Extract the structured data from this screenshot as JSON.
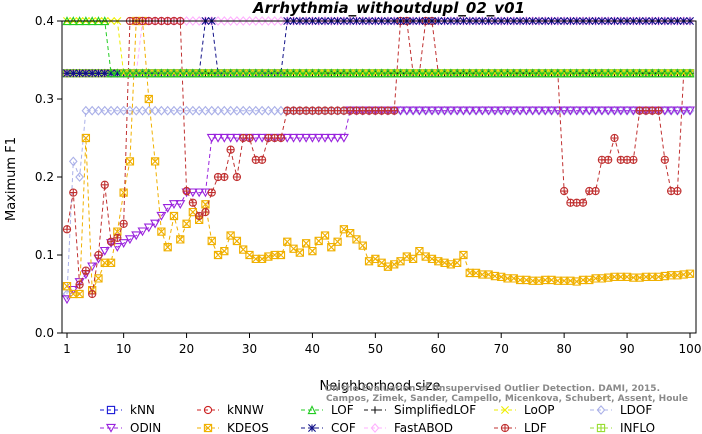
{
  "chart_data": {
    "type": "line",
    "title": "Arrhythmia_withoutdupl_02_v01",
    "xlabel": "Neighborhood size",
    "ylabel": "Maximum F1",
    "xlim": [
      1,
      100
    ],
    "ylim": [
      0.0,
      0.4
    ],
    "xticks": [
      1,
      10,
      20,
      30,
      40,
      50,
      60,
      70,
      80,
      90,
      100
    ],
    "yticks": [
      0.0,
      0.1,
      0.2,
      0.3,
      0.4
    ],
    "ytick_labels": [
      "0.0",
      "0.1",
      "0.2",
      "0.3",
      "0.4"
    ],
    "grid": false,
    "legend_position": "bottom",
    "watermark": [
      "Campos, Zimek, Sander, Campello, Micenkova, Schubert, Assent, Houle",
      "On the Evaluation of Unsupervised Outlier Detection. DAMI, 2015."
    ],
    "series": [
      {
        "name": "kNN",
        "color": "#1a1ad6",
        "marker": "square",
        "segments": [
          {
            "x_from": 1,
            "x_to": 100,
            "values": [
              0.333
            ]
          }
        ]
      },
      {
        "name": "kNNW",
        "color": "#cc2222",
        "marker": "circle",
        "segments": [
          {
            "x_from": 1,
            "x_to": 100,
            "values": [
              0.333
            ]
          }
        ]
      },
      {
        "name": "LOF",
        "color": "#22cc22",
        "marker": "triangle",
        "segments": [
          {
            "x_from": 1,
            "x_to": 7,
            "values": [
              0.4,
              0.4,
              0.4,
              0.4,
              0.4,
              0.4,
              0.4
            ]
          },
          {
            "x_from": 8,
            "x_to": 100,
            "values": [
              0.333
            ]
          }
        ]
      },
      {
        "name": "SimplifiedLOF",
        "color": "#111111",
        "marker": "plus",
        "segments": [
          {
            "x_from": 1,
            "x_to": 100,
            "values": [
              0.333
            ]
          }
        ]
      },
      {
        "name": "LoOP",
        "color": "#eeee00",
        "marker": "x",
        "segments": [
          {
            "x_from": 1,
            "x_to": 9,
            "values": [
              0.4,
              0.4,
              0.4,
              0.4,
              0.4,
              0.4,
              0.4,
              0.4,
              0.4
            ]
          },
          {
            "x_from": 10,
            "x_to": 100,
            "values": [
              0.333
            ]
          }
        ]
      },
      {
        "name": "LDOF",
        "color": "#aab0e8",
        "marker": "diamond",
        "segments": [
          {
            "x_from": 1,
            "x_to": 10,
            "values": [
              0.05,
              0.22,
              0.2,
              0.285,
              0.285,
              0.285,
              0.285,
              0.285,
              0.285,
              0.285
            ]
          },
          {
            "x_from": 11,
            "x_to": 100,
            "values": [
              0.285
            ]
          }
        ]
      },
      {
        "name": "ODIN",
        "color": "#9922dd",
        "marker": "triangle-down",
        "segments": [
          {
            "x_from": 1,
            "x_to": 23,
            "values": [
              0.043,
              0.055,
              0.065,
              0.075,
              0.085,
              0.095,
              0.105,
              0.115,
              0.11,
              0.115,
              0.12,
              0.125,
              0.13,
              0.135,
              0.14,
              0.15,
              0.16,
              0.165,
              0.165,
              0.18,
              0.18,
              0.18,
              0.18
            ]
          },
          {
            "x_from": 24,
            "x_to": 45,
            "values": [
              0.25
            ]
          },
          {
            "x_from": 46,
            "x_to": 100,
            "values": [
              0.285
            ]
          }
        ]
      },
      {
        "name": "KDEOS",
        "color": "#f0b000",
        "marker": "square-x",
        "segments": [
          {
            "x_from": 1,
            "x_to": 26,
            "values": [
              0.06,
              0.05,
              0.05,
              0.25,
              0.055,
              0.07,
              0.09,
              0.09,
              0.13,
              0.18,
              0.22,
              0.4,
              0.4,
              0.3,
              0.22,
              0.13,
              0.11,
              0.15,
              0.12,
              0.14,
              0.155,
              0.145,
              0.165,
              0.118,
              0.1,
              0.105
            ]
          },
          {
            "x_from": 27,
            "x_to": 64,
            "values": [
              0.125,
              0.118,
              0.107,
              0.1,
              0.095,
              0.095,
              0.098,
              0.1,
              0.1,
              0.117,
              0.108,
              0.103,
              0.115,
              0.105,
              0.118,
              0.125,
              0.11,
              0.117,
              0.133,
              0.128,
              0.12,
              0.112,
              0.092,
              0.095,
              0.09,
              0.085,
              0.088,
              0.092,
              0.098,
              0.095,
              0.105,
              0.098,
              0.095,
              0.092,
              0.09,
              0.088,
              0.09,
              0.1
            ]
          },
          {
            "x_from": 65,
            "x_to": 100,
            "values": [
              0.077,
              0.077,
              0.075,
              0.075,
              0.073,
              0.072,
              0.07,
              0.07,
              0.068,
              0.068,
              0.067,
              0.067,
              0.068,
              0.068,
              0.067,
              0.067,
              0.067,
              0.066,
              0.068,
              0.068,
              0.07,
              0.07,
              0.071,
              0.072,
              0.072,
              0.072,
              0.071,
              0.071,
              0.072,
              0.072,
              0.072,
              0.073,
              0.074,
              0.074,
              0.075,
              0.076
            ]
          }
        ]
      },
      {
        "name": "COF",
        "color": "#111188",
        "marker": "star",
        "segments": [
          {
            "x_from": 1,
            "x_to": 22,
            "values": [
              0.333
            ]
          },
          {
            "x_from": 23,
            "x_to": 24,
            "values": [
              0.4,
              0.4
            ]
          },
          {
            "x_from": 25,
            "x_to": 35,
            "values": [
              0.333
            ]
          },
          {
            "x_from": 36,
            "x_to": 100,
            "values": [
              0.4
            ]
          }
        ]
      },
      {
        "name": "FastABOD",
        "color": "#ffb0ff",
        "marker": "diamond",
        "segments": [
          {
            "x_from": 1,
            "x_to": 12,
            "values": [
              0.333
            ]
          },
          {
            "x_from": 13,
            "x_to": 100,
            "values": [
              0.4
            ]
          }
        ]
      },
      {
        "name": "LDF",
        "color": "#c03030",
        "marker": "circle-plus",
        "segments": [
          {
            "x_from": 1,
            "x_to": 35,
            "values": [
              0.133,
              0.18,
              0.062,
              0.08,
              0.05,
              0.1,
              0.19,
              0.117,
              0.122,
              0.14,
              0.4,
              0.4,
              0.4,
              0.4,
              0.4,
              0.4,
              0.4,
              0.4,
              0.4,
              0.182,
              0.167,
              0.15,
              0.155,
              0.18,
              0.2,
              0.2,
              0.235,
              0.2,
              0.25,
              0.25,
              0.222,
              0.222,
              0.25,
              0.25,
              0.25
            ]
          },
          {
            "x_from": 36,
            "x_to": 53,
            "values": [
              0.285
            ]
          },
          {
            "x_from": 54,
            "x_to": 59,
            "values": [
              0.4,
              0.4,
              0.333,
              0.333,
              0.4,
              0.4
            ]
          },
          {
            "x_from": 60,
            "x_to": 99,
            "values": [
              0.333,
              0.333,
              0.333,
              0.333,
              0.333,
              0.333,
              0.333,
              0.333,
              0.333,
              0.333,
              0.333,
              0.333,
              0.333,
              0.333,
              0.333,
              0.333,
              0.333,
              0.333,
              0.333,
              0.333,
              0.182,
              0.167,
              0.167,
              0.167,
              0.182,
              0.182,
              0.222,
              0.222,
              0.25,
              0.222,
              0.222,
              0.222,
              0.285,
              0.285,
              0.285,
              0.285,
              0.222,
              0.182,
              0.182,
              0.333
            ]
          }
        ]
      },
      {
        "name": "INFLO",
        "color": "#99dd33",
        "marker": "square-plus",
        "segments": [
          {
            "x_from": 1,
            "x_to": 100,
            "values": [
              0.333
            ]
          }
        ]
      }
    ]
  }
}
